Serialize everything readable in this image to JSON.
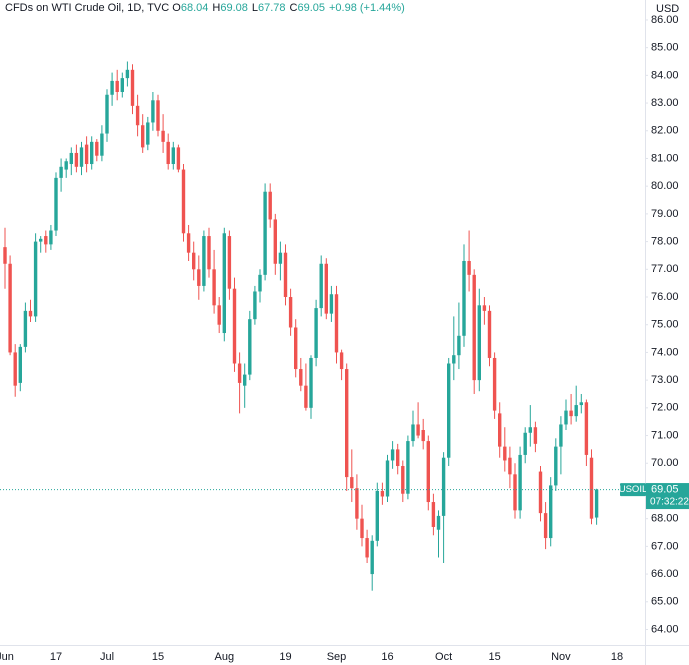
{
  "chart_data": {
    "type": "candlestick",
    "title": "CFDs on WTI Crude Oil, 1D, TVC",
    "ohlc_letters": [
      "O",
      "H",
      "L",
      "C"
    ],
    "change": "+0.98 (+1.44%)",
    "currency": "USD",
    "symbol_label": "USOIL",
    "countdown": "07:32:22",
    "up_color": "#26a69a",
    "down_color": "#ef5350",
    "categories": [
      "Jun",
      null,
      null,
      null,
      null,
      null,
      null,
      null,
      null,
      null,
      "17",
      null,
      null,
      null,
      null,
      null,
      null,
      null,
      null,
      null,
      "Jul",
      null,
      null,
      null,
      null,
      null,
      null,
      null,
      null,
      null,
      "15",
      null,
      null,
      null,
      null,
      null,
      null,
      null,
      null,
      null,
      null,
      null,
      null,
      "Aug",
      null,
      null,
      null,
      null,
      null,
      null,
      null,
      null,
      null,
      null,
      null,
      "19",
      null,
      null,
      null,
      null,
      null,
      null,
      null,
      null,
      null,
      "Sep",
      null,
      null,
      null,
      null,
      null,
      null,
      null,
      null,
      null,
      "16",
      null,
      null,
      null,
      null,
      null,
      null,
      null,
      null,
      null,
      null,
      "Oct",
      null,
      null,
      null,
      null,
      null,
      null,
      null,
      null,
      null,
      "15",
      null,
      null,
      null,
      null,
      null,
      null,
      null,
      null,
      null,
      null,
      null,
      null,
      "Nov",
      null,
      null,
      null,
      null,
      null,
      null,
      null,
      null,
      null,
      null,
      "18"
    ],
    "open": [
      77.8,
      77.2,
      74.0,
      72.9,
      74.2,
      75.5,
      75.3,
      78.0,
      78.2,
      77.9,
      78.4,
      80.3,
      80.6,
      80.8,
      81.2,
      80.7,
      81.5,
      80.8,
      81.6,
      81.1,
      81.9,
      83.3,
      83.8,
      83.4,
      83.9,
      84.2,
      82.9,
      82.2,
      81.5,
      82.3,
      83.1,
      82.0,
      81.6,
      80.8,
      81.4,
      80.6,
      78.3,
      77.6,
      77.0,
      76.4,
      78.2,
      77.0,
      75.7,
      74.7,
      78.2,
      76.3,
      73.6,
      72.8,
      73.2,
      75.2,
      76.2,
      76.8,
      79.8,
      78.8,
      77.2,
      77.6,
      76.0,
      74.9,
      73.4,
      72.8,
      72.0,
      73.8,
      75.6,
      77.2,
      75.4,
      76.1,
      74.0,
      73.4,
      69.5,
      69.1,
      68.0,
      67.3,
      66.0,
      67.2,
      69.0,
      68.8,
      70.1,
      70.5,
      69.9,
      68.9,
      70.8,
      71.4,
      71.2,
      70.8,
      68.6,
      67.6,
      68.1,
      70.2,
      73.6,
      73.9,
      74.6,
      77.3,
      76.8,
      73.0,
      75.7,
      75.5,
      73.8,
      71.8,
      70.6,
      70.2,
      69.6,
      68.3,
      70.3,
      71.1,
      71.3,
      69.7,
      68.2,
      67.3,
      69.2,
      70.6,
      71.4,
      71.9,
      71.7,
      72.1,
      72.2,
      70.2,
      68.04,
      null,
      null,
      null,
      null
    ],
    "high": [
      78.5,
      77.5,
      74.3,
      74.3,
      75.8,
      75.9,
      78.3,
      78.2,
      78.4,
      78.6,
      80.5,
      81.0,
      81.0,
      81.4,
      81.5,
      81.6,
      81.8,
      81.8,
      81.7,
      82.2,
      83.5,
      84.1,
      84.2,
      84.1,
      84.5,
      84.4,
      83.3,
      82.6,
      82.5,
      83.4,
      83.3,
      82.6,
      81.9,
      81.6,
      81.5,
      80.8,
      78.6,
      78.0,
      77.5,
      78.4,
      78.5,
      77.7,
      76.0,
      78.5,
      78.4,
      76.7,
      74.0,
      73.6,
      75.5,
      76.4,
      77.0,
      80.1,
      80.1,
      79.0,
      78.0,
      77.9,
      76.3,
      75.2,
      73.8,
      73.6,
      73.9,
      75.9,
      77.5,
      77.4,
      76.4,
      76.4,
      74.1,
      73.6,
      70.5,
      69.6,
      68.5,
      67.6,
      67.4,
      69.3,
      69.3,
      70.3,
      70.8,
      70.7,
      70.1,
      71.0,
      71.9,
      72.2,
      71.6,
      71.0,
      68.9,
      68.3,
      70.4,
      73.8,
      75.3,
      75.8,
      77.9,
      78.4,
      77.0,
      76.3,
      76.0,
      75.7,
      74.0,
      72.2,
      71.3,
      70.6,
      70.0,
      70.6,
      71.3,
      72.1,
      71.5,
      69.9,
      68.6,
      69.5,
      70.9,
      71.7,
      72.3,
      72.5,
      72.8,
      72.5,
      72.3,
      70.5,
      69.08,
      null,
      null,
      null,
      null
    ],
    "low": [
      76.3,
      73.9,
      72.4,
      72.6,
      74.0,
      75.1,
      75.1,
      77.6,
      77.6,
      77.7,
      78.2,
      79.8,
      80.3,
      80.4,
      80.5,
      80.4,
      80.5,
      80.6,
      80.9,
      80.9,
      81.6,
      82.9,
      83.1,
      83.2,
      83.6,
      82.6,
      81.8,
      81.2,
      81.3,
      82.0,
      81.8,
      81.2,
      80.6,
      80.6,
      80.5,
      78.0,
      77.3,
      76.6,
      75.9,
      76.2,
      76.7,
      75.4,
      74.7,
      74.4,
      75.9,
      73.3,
      71.8,
      72.0,
      73.0,
      75.0,
      75.8,
      76.6,
      78.5,
      76.8,
      76.6,
      75.7,
      74.6,
      73.1,
      72.6,
      71.9,
      71.6,
      73.5,
      75.3,
      75.2,
      75.1,
      73.6,
      73.0,
      69.0,
      68.6,
      67.6,
      67.0,
      66.4,
      65.4,
      67.0,
      68.5,
      68.6,
      69.8,
      69.6,
      68.6,
      68.7,
      70.6,
      70.9,
      70.5,
      68.3,
      67.4,
      66.6,
      66.4,
      69.9,
      73.0,
      73.4,
      74.2,
      76.2,
      72.5,
      72.6,
      75.0,
      73.5,
      71.6,
      70.2,
      69.7,
      69.1,
      68.0,
      68.0,
      70.0,
      70.6,
      70.4,
      67.9,
      66.9,
      67.0,
      69.0,
      69.6,
      71.2,
      71.4,
      71.5,
      71.8,
      69.9,
      67.8,
      67.78,
      null,
      null,
      null,
      null
    ],
    "close": [
      77.2,
      74.0,
      72.8,
      74.2,
      75.5,
      75.3,
      78.0,
      78.1,
      77.9,
      78.4,
      80.3,
      80.7,
      80.9,
      81.2,
      80.7,
      81.4,
      80.8,
      81.6,
      81.1,
      81.9,
      83.3,
      83.8,
      83.4,
      83.9,
      84.2,
      82.9,
      82.2,
      81.4,
      82.3,
      83.1,
      82.0,
      81.6,
      80.8,
      81.4,
      80.6,
      78.3,
      77.6,
      77.0,
      76.4,
      78.2,
      77.0,
      75.7,
      75.0,
      78.3,
      76.3,
      73.6,
      72.9,
      73.2,
      75.2,
      76.2,
      76.8,
      79.8,
      78.8,
      77.2,
      77.6,
      76.0,
      74.9,
      73.4,
      72.8,
      72.0,
      73.8,
      75.6,
      77.2,
      75.4,
      76.1,
      74.0,
      73.4,
      69.5,
      69.1,
      68.0,
      67.3,
      66.6,
      67.2,
      69.0,
      68.8,
      70.1,
      70.5,
      69.9,
      68.9,
      70.8,
      71.4,
      71.0,
      70.8,
      68.6,
      67.7,
      68.1,
      70.2,
      73.6,
      73.9,
      74.6,
      77.3,
      76.8,
      73.0,
      75.7,
      75.5,
      73.8,
      71.9,
      70.6,
      70.1,
      69.6,
      68.3,
      70.3,
      71.1,
      71.3,
      70.7,
      68.2,
      67.3,
      69.2,
      70.6,
      71.4,
      71.9,
      71.7,
      72.1,
      72.2,
      70.3,
      68.0,
      69.05,
      null,
      null,
      null,
      null
    ],
    "ylim": [
      63.44,
      86.72
    ],
    "yticks": [
      {
        "value": 86,
        "label": "86.00"
      },
      {
        "value": 85,
        "label": "85.00"
      },
      {
        "value": 84,
        "label": "84.00"
      },
      {
        "value": 83,
        "label": "83.00"
      },
      {
        "value": 82,
        "label": "82.00"
      },
      {
        "value": 81,
        "label": "81.00"
      },
      {
        "value": 80,
        "label": "80.00"
      },
      {
        "value": 79,
        "label": "79.00"
      },
      {
        "value": 78,
        "label": "78.00"
      },
      {
        "value": 77,
        "label": "77.00"
      },
      {
        "value": 76,
        "label": "76.00"
      },
      {
        "value": 75,
        "label": "75.00"
      },
      {
        "value": 74,
        "label": "74.00"
      },
      {
        "value": 73,
        "label": "73.00"
      },
      {
        "value": 72,
        "label": "72.00"
      },
      {
        "value": 71,
        "label": "71.00"
      },
      {
        "value": 70,
        "label": "70.00"
      },
      {
        "value": 68,
        "label": "68.00"
      },
      {
        "value": 67,
        "label": "67.00"
      },
      {
        "value": 66,
        "label": "66.00"
      },
      {
        "value": 65,
        "label": "65.00"
      },
      {
        "value": 64,
        "label": "64.00"
      }
    ],
    "grid": false
  }
}
